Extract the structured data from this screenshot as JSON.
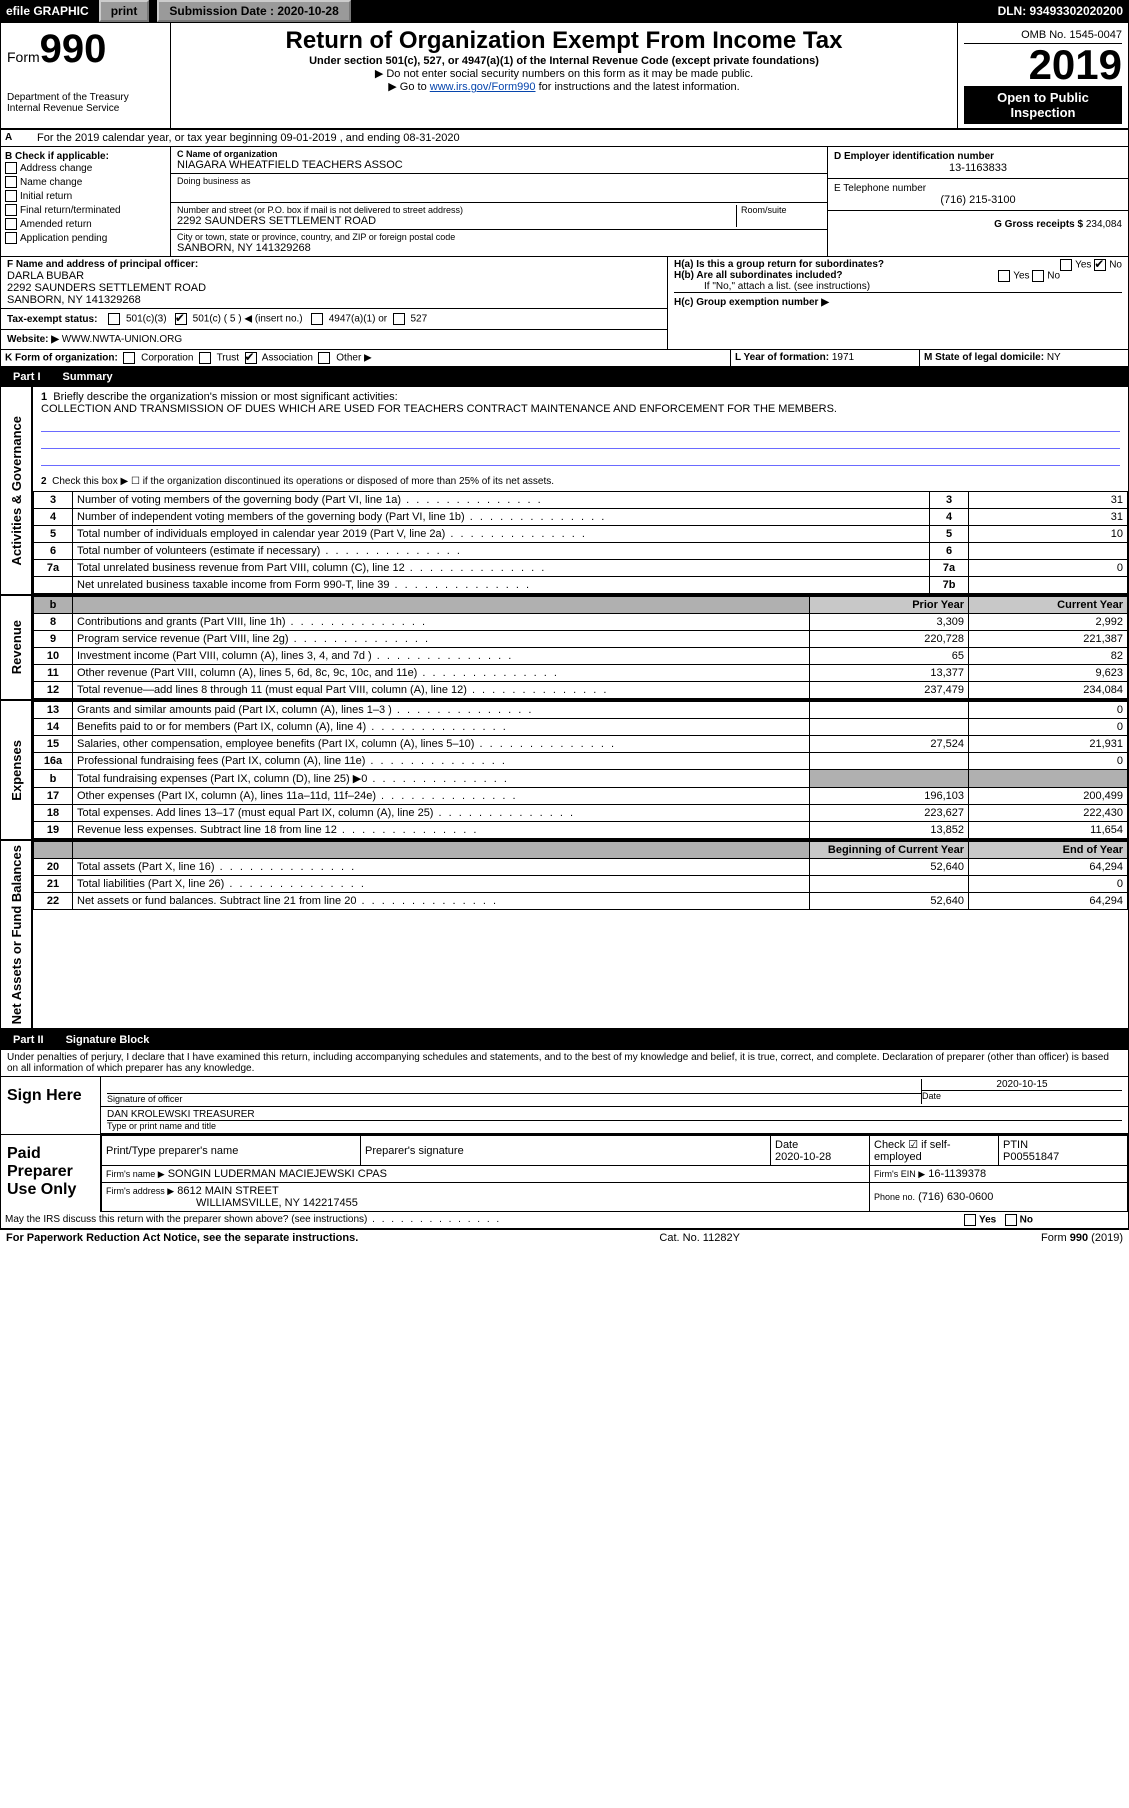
{
  "topbar": {
    "efile": "efile GRAPHIC",
    "print": "print",
    "sub_label": "Submission Date : 2020-10-28",
    "dln": "DLN: 93493302020200"
  },
  "header": {
    "form_word": "Form",
    "form_num": "990",
    "dept1": "Department of the Treasury",
    "dept2": "Internal Revenue Service",
    "title": "Return of Organization Exempt From Income Tax",
    "sub1": "Under section 501(c), 527, or 4947(a)(1) of the Internal Revenue Code (except private foundations)",
    "sub2": "▶ Do not enter social security numbers on this form as it may be made public.",
    "sub3_pre": "▶ Go to ",
    "sub3_link": "www.irs.gov/Form990",
    "sub3_post": " for instructions and the latest information.",
    "omb": "OMB No. 1545-0047",
    "year": "2019",
    "open": "Open to Public Inspection"
  },
  "lineA": "For the 2019 calendar year, or tax year beginning 09-01-2019    , and ending 08-31-2020",
  "boxB": {
    "label": "B Check if applicable:",
    "opts": [
      "Address change",
      "Name change",
      "Initial return",
      "Final return/terminated",
      "Amended return",
      "Application pending"
    ]
  },
  "boxC": {
    "c_label": "C Name of organization",
    "org": "NIAGARA WHEATFIELD TEACHERS ASSOC",
    "dba": "Doing business as",
    "addr_label": "Number and street (or P.O. box if mail is not delivered to street address)",
    "room": "Room/suite",
    "addr": "2292 SAUNDERS SETTLEMENT ROAD",
    "city_label": "City or town, state or province, country, and ZIP or foreign postal code",
    "city": "SANBORN, NY  141329268"
  },
  "boxD": {
    "label": "D Employer identification number",
    "val": "13-1163833"
  },
  "boxE": {
    "label": "E Telephone number",
    "val": "(716) 215-3100"
  },
  "boxG": {
    "label": "G Gross receipts $",
    "val": "234,084"
  },
  "boxF": {
    "label": "F  Name and address of principal officer:",
    "name": "DARLA BUBAR",
    "addr1": "2292 SAUNDERS SETTLEMENT ROAD",
    "addr2": "SANBORN, NY  141329268"
  },
  "boxH": {
    "ha": "H(a)  Is this a group return for subordinates?",
    "hb": "H(b)  Are all subordinates included?",
    "hb_note": "If \"No,\" attach a list. (see instructions)",
    "hc": "H(c)  Group exemption number ▶",
    "yes": "Yes",
    "no": "No"
  },
  "boxI": {
    "label": "Tax-exempt status:",
    "o1": "501(c)(3)",
    "o2": "501(c) ( 5 ) ◀ (insert no.)",
    "o3": "4947(a)(1) or",
    "o4": "527"
  },
  "boxJ": {
    "label": "Website: ▶",
    "val": "WWW.NWTA-UNION.ORG"
  },
  "boxK": {
    "label": "K Form of organization:",
    "o1": "Corporation",
    "o2": "Trust",
    "o3": "Association",
    "o4": "Other ▶"
  },
  "boxL": {
    "label": "L Year of formation:",
    "val": "1971"
  },
  "boxM": {
    "label": "M State of legal domicile:",
    "val": "NY"
  },
  "partI": {
    "title": "Part I",
    "sub": "Summary",
    "l1": "Briefly describe the organization's mission or most significant activities:",
    "mission": "COLLECTION AND TRANSMISSION OF DUES WHICH ARE USED FOR TEACHERS CONTRACT MAINTENANCE AND ENFORCEMENT FOR THE MEMBERS.",
    "l2": "Check this box ▶ ☐  if the organization discontinued its operations or disposed of more than 25% of its net assets.",
    "rows_ag": [
      {
        "n": "3",
        "d": "Number of voting members of the governing body (Part VI, line 1a)",
        "box": "3",
        "v": "31"
      },
      {
        "n": "4",
        "d": "Number of independent voting members of the governing body (Part VI, line 1b)",
        "box": "4",
        "v": "31"
      },
      {
        "n": "5",
        "d": "Total number of individuals employed in calendar year 2019 (Part V, line 2a)",
        "box": "5",
        "v": "10"
      },
      {
        "n": "6",
        "d": "Total number of volunteers (estimate if necessary)",
        "box": "6",
        "v": ""
      },
      {
        "n": "7a",
        "d": "Total unrelated business revenue from Part VIII, column (C), line 12",
        "box": "7a",
        "v": "0"
      },
      {
        "n": "",
        "d": "Net unrelated business taxable income from Form 990-T, line 39",
        "box": "7b",
        "v": ""
      }
    ],
    "col_prior": "Prior Year",
    "col_curr": "Current Year",
    "rows_rev": [
      {
        "n": "8",
        "d": "Contributions and grants (Part VIII, line 1h)",
        "p": "3,309",
        "c": "2,992"
      },
      {
        "n": "9",
        "d": "Program service revenue (Part VIII, line 2g)",
        "p": "220,728",
        "c": "221,387"
      },
      {
        "n": "10",
        "d": "Investment income (Part VIII, column (A), lines 3, 4, and 7d )",
        "p": "65",
        "c": "82"
      },
      {
        "n": "11",
        "d": "Other revenue (Part VIII, column (A), lines 5, 6d, 8c, 9c, 10c, and 11e)",
        "p": "13,377",
        "c": "9,623"
      },
      {
        "n": "12",
        "d": "Total revenue—add lines 8 through 11 (must equal Part VIII, column (A), line 12)",
        "p": "237,479",
        "c": "234,084"
      }
    ],
    "rows_exp": [
      {
        "n": "13",
        "d": "Grants and similar amounts paid (Part IX, column (A), lines 1–3 )",
        "p": "",
        "c": "0"
      },
      {
        "n": "14",
        "d": "Benefits paid to or for members (Part IX, column (A), line 4)",
        "p": "",
        "c": "0"
      },
      {
        "n": "15",
        "d": "Salaries, other compensation, employee benefits (Part IX, column (A), lines 5–10)",
        "p": "27,524",
        "c": "21,931"
      },
      {
        "n": "16a",
        "d": "Professional fundraising fees (Part IX, column (A), line 11e)",
        "p": "",
        "c": "0"
      },
      {
        "n": "b",
        "d": "Total fundraising expenses (Part IX, column (D), line 25) ▶0",
        "p": "GREY",
        "c": "GREY"
      },
      {
        "n": "17",
        "d": "Other expenses (Part IX, column (A), lines 11a–11d, 11f–24e)",
        "p": "196,103",
        "c": "200,499"
      },
      {
        "n": "18",
        "d": "Total expenses. Add lines 13–17 (must equal Part IX, column (A), line 25)",
        "p": "223,627",
        "c": "222,430"
      },
      {
        "n": "19",
        "d": "Revenue less expenses. Subtract line 18 from line 12",
        "p": "13,852",
        "c": "11,654"
      }
    ],
    "col_beg": "Beginning of Current Year",
    "col_end": "End of Year",
    "rows_net": [
      {
        "n": "20",
        "d": "Total assets (Part X, line 16)",
        "p": "52,640",
        "c": "64,294"
      },
      {
        "n": "21",
        "d": "Total liabilities (Part X, line 26)",
        "p": "",
        "c": "0"
      },
      {
        "n": "22",
        "d": "Net assets or fund balances. Subtract line 21 from line 20",
        "p": "52,640",
        "c": "64,294"
      }
    ],
    "side_ag": "Activities & Governance",
    "side_rev": "Revenue",
    "side_exp": "Expenses",
    "side_net": "Net Assets or Fund Balances"
  },
  "partII": {
    "title": "Part II",
    "sub": "Signature Block",
    "decl": "Under penalties of perjury, I declare that I have examined this return, including accompanying schedules and statements, and to the best of my knowledge and belief, it is true, correct, and complete. Declaration of preparer (other than officer) is based on all information of which preparer has any knowledge.",
    "sign_here": "Sign Here",
    "sig_officer": "Signature of officer",
    "date": "Date",
    "date_v": "2020-10-15",
    "officer_name": "DAN KROLEWSKI  TREASURER",
    "type_name": "Type or print name and title",
    "paid": "Paid Preparer Use Only",
    "prep_name_l": "Print/Type preparer's name",
    "prep_sig_l": "Preparer's signature",
    "prep_date_l": "Date",
    "prep_date_v": "2020-10-28",
    "check_self": "Check ☑ if self-employed",
    "ptin_l": "PTIN",
    "ptin_v": "P00551847",
    "firm_name_l": "Firm's name    ▶",
    "firm_name": "SONGIN LUDERMAN MACIEJEWSKI CPAS",
    "firm_ein_l": "Firm's EIN ▶",
    "firm_ein": "16-1139378",
    "firm_addr_l": "Firm's address ▶",
    "firm_addr1": "8612 MAIN STREET",
    "firm_addr2": "WILLIAMSVILLE, NY  142217455",
    "phone_l": "Phone no.",
    "phone": "(716) 630-0600",
    "discuss": "May the IRS discuss this return with the preparer shown above? (see instructions)",
    "yes": "Yes",
    "no": "No"
  },
  "footer": {
    "l": "For Paperwork Reduction Act Notice, see the separate instructions.",
    "c": "Cat. No. 11282Y",
    "r": "Form 990 (2019)"
  }
}
